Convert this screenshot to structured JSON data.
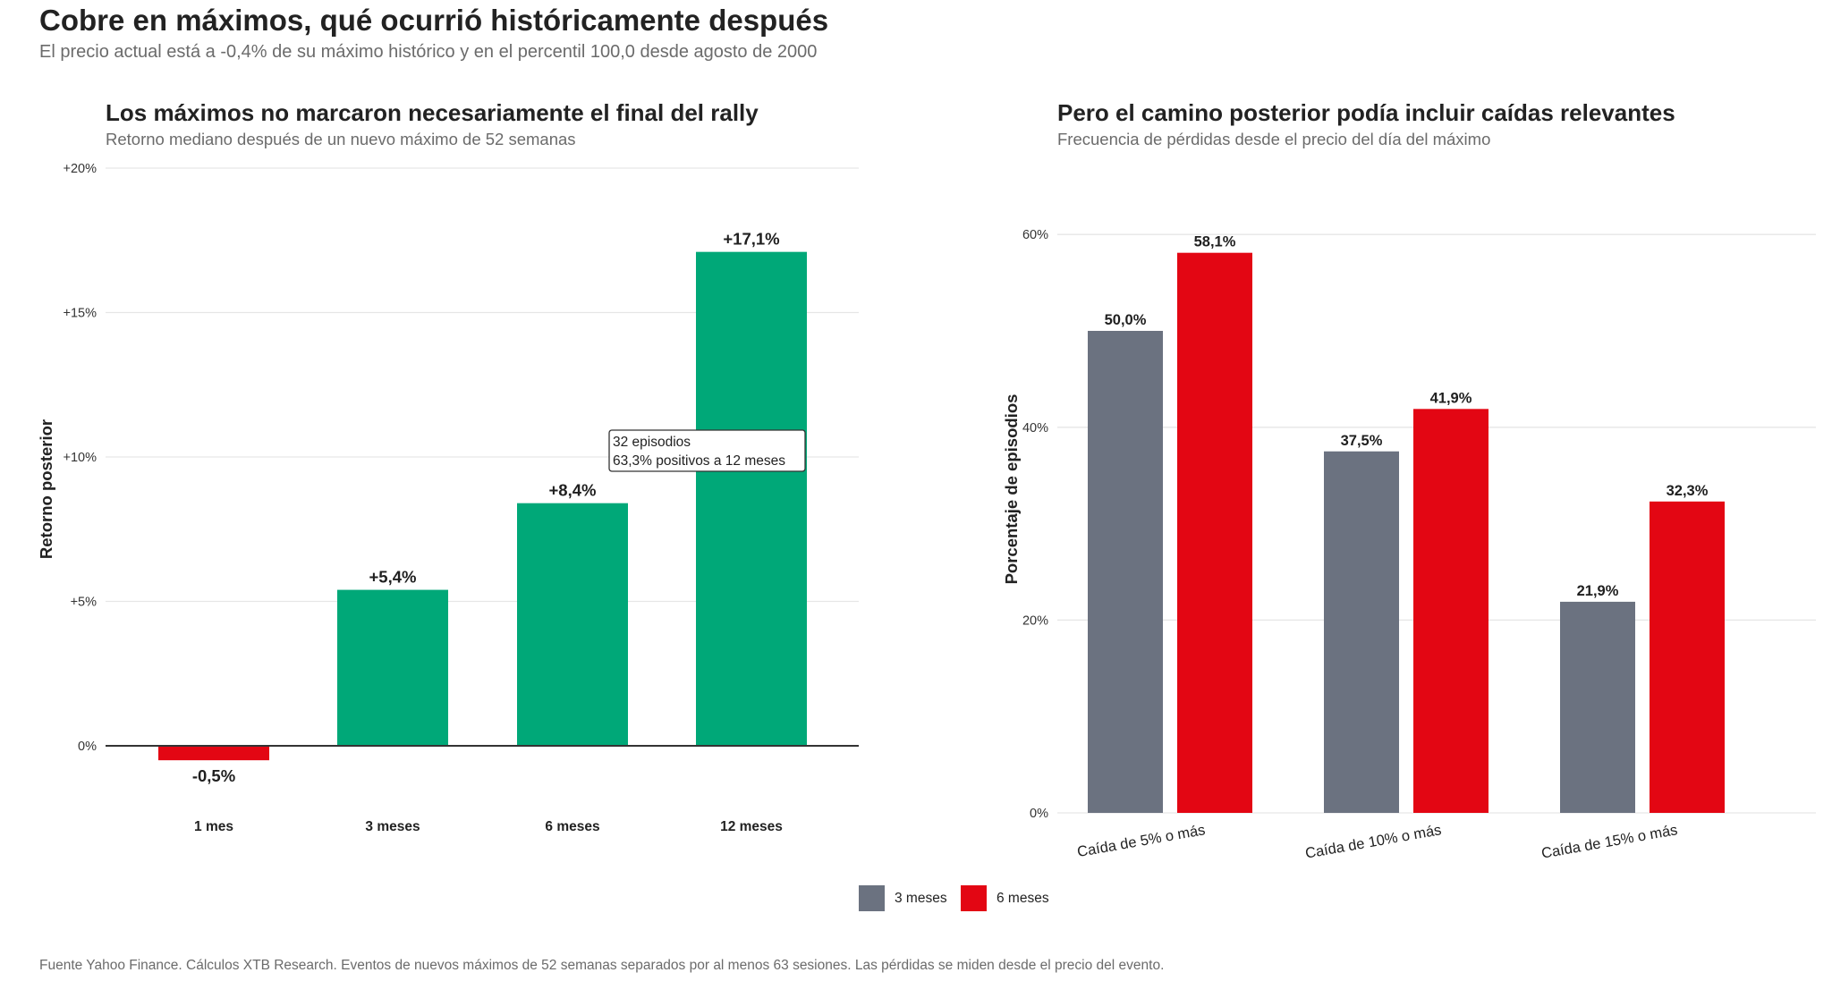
{
  "title": "Cobre en máximos, qué ocurrió históricamente después",
  "subtitle": "El precio actual está a -0,4% de su máximo histórico y en el percentil 100,0 desde agosto de 2000",
  "footer": "Fuente Yahoo Finance. Cálculos XTB Research. Eventos de nuevos máximos de 52 semanas separados por al menos 63 sesiones. Las pérdidas se miden desde el precio del evento.",
  "colors": {
    "positive": "#00a878",
    "negative": "#e30613",
    "gray": "#6b7280",
    "red": "#e30613"
  },
  "chart_data": [
    {
      "type": "bar",
      "title": "Los máximos no marcaron necesariamente el final del rally",
      "subtitle": "Retorno mediano después de un nuevo máximo de 52 semanas",
      "xlabel": "",
      "ylabel": "Retorno posterior",
      "categories": [
        "1 mes",
        "3 meses",
        "6 meses",
        "12 meses"
      ],
      "values": [
        -0.5,
        5.4,
        8.4,
        17.1
      ],
      "value_labels": [
        "-0,5%",
        "+5,4%",
        "+8,4%",
        "+17,1%"
      ],
      "ylim": [
        -1.2,
        20
      ],
      "yticks": [
        0,
        5,
        10,
        15,
        20
      ],
      "ytick_labels": [
        "0%",
        "+5%",
        "+10%",
        "+15%",
        "+20%"
      ],
      "grid": true,
      "annotation": {
        "lines": [
          "32 episodios",
          "63,3% positivos a 12 meses"
        ]
      }
    },
    {
      "type": "bar",
      "title": "Pero el camino posterior podía incluir caídas relevantes",
      "subtitle": "Frecuencia de pérdidas desde el precio del día del máximo",
      "xlabel": "",
      "ylabel": "Porcentaje de episodios",
      "categories": [
        "Caída de 5% o más",
        "Caída de 10% o más",
        "Caída de 15% o más"
      ],
      "series": [
        {
          "name": "3 meses",
          "values": [
            50.0,
            37.5,
            21.9
          ],
          "labels": [
            "50,0%",
            "37,5%",
            "21,9%"
          ]
        },
        {
          "name": "6 meses",
          "values": [
            58.1,
            41.9,
            32.3
          ],
          "labels": [
            "58,1%",
            "41,9%",
            "32,3%"
          ]
        }
      ],
      "ylim": [
        0,
        60
      ],
      "yticks": [
        0,
        20,
        40,
        60
      ],
      "ytick_labels": [
        "0%",
        "20%",
        "40%",
        "60%"
      ],
      "grid": true,
      "legend_position": "bottom"
    }
  ]
}
